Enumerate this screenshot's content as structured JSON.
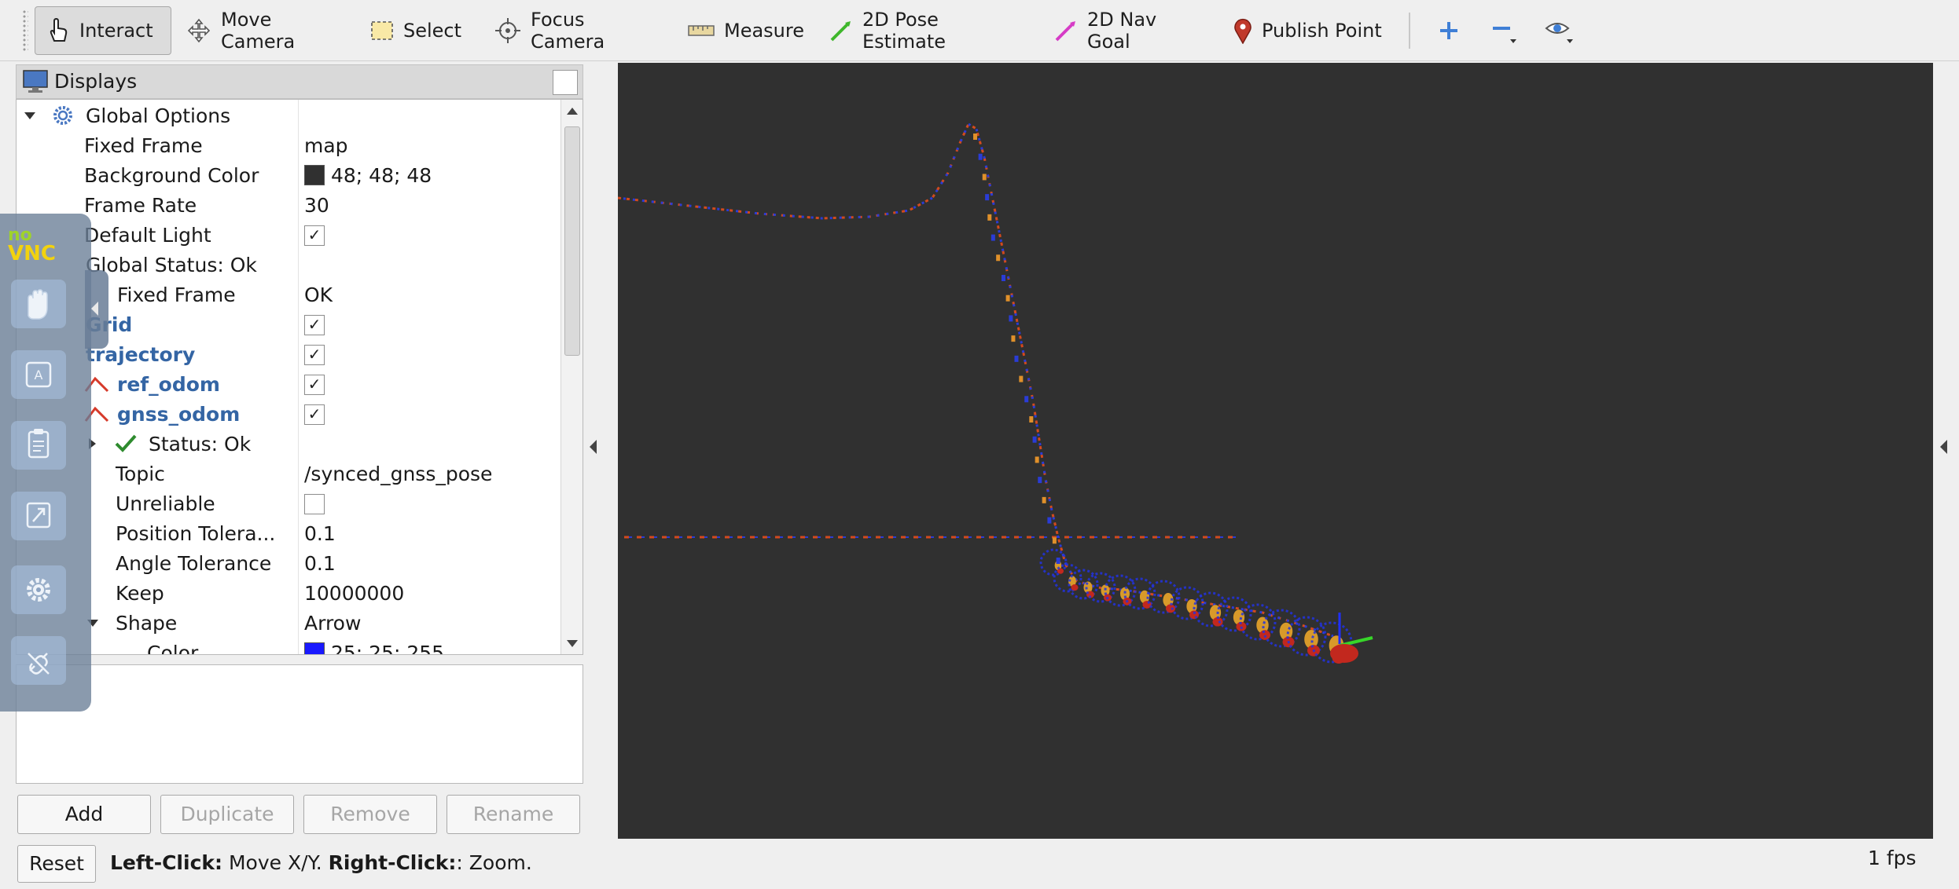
{
  "toolbar": {
    "tools": [
      {
        "label": "Interact"
      },
      {
        "label": "Move Camera"
      },
      {
        "label": "Select"
      },
      {
        "label": "Focus Camera"
      },
      {
        "label": "Measure"
      },
      {
        "label": "2D Pose Estimate"
      },
      {
        "label": "2D Nav Goal"
      },
      {
        "label": "Publish Point"
      }
    ],
    "icons": [
      "plus-icon",
      "minus-icon",
      "eye-icon"
    ]
  },
  "displays": {
    "title": "Displays",
    "rows": [
      {
        "key": "Global Options",
        "value": ""
      },
      {
        "key": "Fixed Frame",
        "value": "map"
      },
      {
        "key": "Background Color",
        "value": "48; 48; 48"
      },
      {
        "key": "Frame Rate",
        "value": "30"
      },
      {
        "key": "Default Light",
        "value": "checked"
      },
      {
        "key": "Global Status: Ok",
        "value": ""
      },
      {
        "key": "Fixed Frame",
        "value": "OK"
      },
      {
        "key": "Grid",
        "value": "checked"
      },
      {
        "key": "trajectory",
        "value": "checked"
      },
      {
        "key": "ref_odom",
        "value": "checked"
      },
      {
        "key": "gnss_odom",
        "value": "checked"
      },
      {
        "key": "Status: Ok",
        "value": ""
      },
      {
        "key": "Topic",
        "value": "/synced_gnss_pose"
      },
      {
        "key": "Unreliable",
        "value": "unchecked"
      },
      {
        "key": "Position Tolera...",
        "value": "0.1"
      },
      {
        "key": "Angle Tolerance",
        "value": "0.1"
      },
      {
        "key": "Keep",
        "value": "10000000"
      },
      {
        "key": "Shape",
        "value": "Arrow"
      },
      {
        "key": "Color",
        "value": "25; 25; 255"
      }
    ],
    "buttons": {
      "add": "Add",
      "duplicate": "Duplicate",
      "remove": "Remove",
      "rename": "Rename"
    }
  },
  "colors": {
    "background": "#303030",
    "arrow_color": "#1919ff",
    "accent_blue": "#3465a4"
  },
  "status_bar": {
    "reset": "Reset",
    "hint_left_bold": "Left-Click:",
    "hint_left": " Move X/Y. ",
    "hint_right_bold": "Right-Click:",
    "hint_right": ": Zoom.",
    "fps": "1 fps"
  },
  "novnc": {
    "logo_top": "no",
    "logo_bottom": "VNC"
  }
}
